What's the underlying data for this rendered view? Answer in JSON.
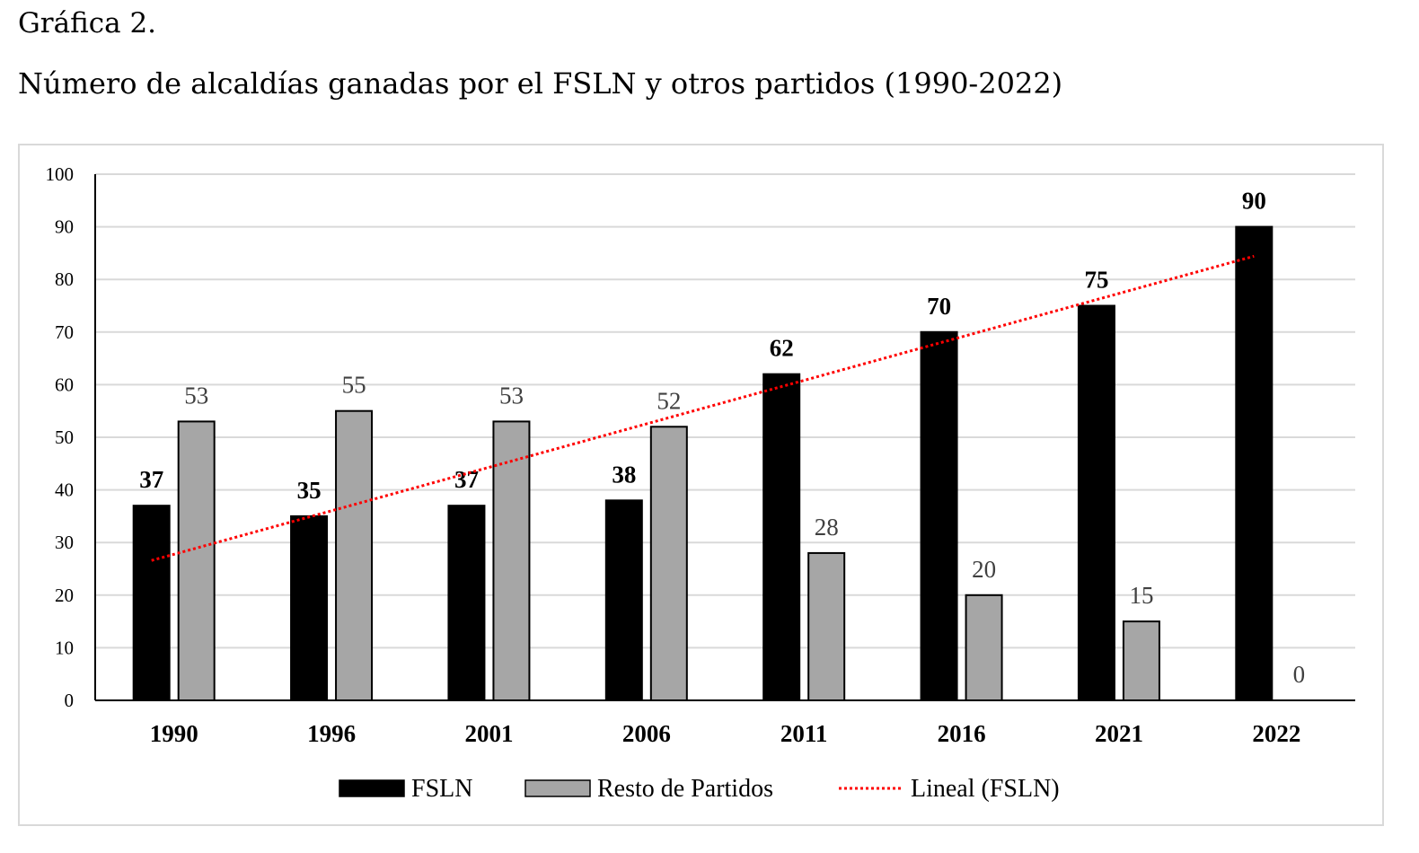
{
  "figure_label": "Gráfica 2.",
  "figure_title": "Número de alcaldías ganadas por el FSLN y otros partidos (1990-2022)",
  "chart_data": {
    "type": "bar",
    "title": "Número de alcaldías ganadas por el FSLN y otros partidos (1990-2022)",
    "xlabel": "",
    "ylabel": "",
    "categories": [
      "1990",
      "1996",
      "2001",
      "2006",
      "2011",
      "2016",
      "2021",
      "2022"
    ],
    "series": [
      {
        "name": "FSLN",
        "values": [
          37,
          35,
          37,
          38,
          62,
          70,
          75,
          90
        ],
        "color": "#000000",
        "label_bold": true
      },
      {
        "name": "Resto de Partidos",
        "values": [
          53,
          55,
          53,
          52,
          28,
          20,
          15,
          0
        ],
        "color": "#a6a6a6",
        "label_bold": false
      }
    ],
    "trendline": {
      "name": "Lineal (FSLN)",
      "of_series": "FSLN",
      "type": "linear",
      "color": "#ff0000",
      "style": "dotted"
    },
    "ylim": [
      0,
      100
    ],
    "yticks": [
      0,
      10,
      20,
      30,
      40,
      50,
      60,
      70,
      80,
      90,
      100
    ],
    "grid": true,
    "legend_position": "bottom-center"
  }
}
